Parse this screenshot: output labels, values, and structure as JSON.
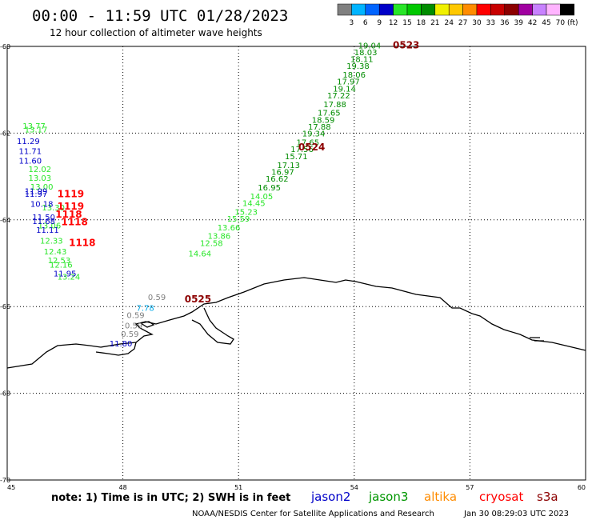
{
  "header": {
    "title": "00:00 - 11:59 UTC 01/28/2023",
    "subtitle": "12 hour collection of altimeter wave heights"
  },
  "legend": {
    "unit": "(ft)",
    "bins": [
      {
        "label": "3",
        "color": "#808080"
      },
      {
        "label": "6",
        "color": "#00b4ff"
      },
      {
        "label": "9",
        "color": "#0064ff"
      },
      {
        "label": "12",
        "color": "#0000c8"
      },
      {
        "label": "15",
        "color": "#28e628"
      },
      {
        "label": "18",
        "color": "#00c800"
      },
      {
        "label": "21",
        "color": "#008c00"
      },
      {
        "label": "24",
        "color": "#f0f000"
      },
      {
        "label": "27",
        "color": "#ffc800"
      },
      {
        "label": "30",
        "color": "#ff8c00"
      },
      {
        "label": "33",
        "color": "#ff0000"
      },
      {
        "label": "36",
        "color": "#c80000"
      },
      {
        "label": "39",
        "color": "#8c0000"
      },
      {
        "label": "42",
        "color": "#a000a0"
      },
      {
        "label": "45",
        "color": "#c882ff"
      },
      {
        "label": "70",
        "color": "#ffb4ff"
      },
      {
        "label": "",
        "color": "#000000"
      }
    ]
  },
  "axes": {
    "lon_ticks": [
      "45",
      "48",
      "51",
      "54",
      "57",
      "60"
    ],
    "lat_ticks": [
      "-60",
      "-62",
      "-64",
      "-66",
      "-68",
      "-70"
    ]
  },
  "chart_data": {
    "type": "scatter",
    "xlim": [
      45,
      60
    ],
    "ylim": [
      -70,
      -60
    ],
    "grid": true,
    "series": [
      {
        "name": "jason3",
        "color": "#008c00",
        "points": [
          {
            "lon": 54.1,
            "lat": -60.05,
            "v": "19.04"
          },
          {
            "lon": 54.0,
            "lat": -60.2,
            "v": "18.03"
          },
          {
            "lon": 53.9,
            "lat": -60.36,
            "v": "18.11"
          },
          {
            "lon": 53.8,
            "lat": -60.52,
            "v": "19.38"
          },
          {
            "lon": 53.7,
            "lat": -60.72,
            "v": "18.06"
          },
          {
            "lon": 53.55,
            "lat": -60.88,
            "v": "17.97"
          },
          {
            "lon": 53.45,
            "lat": -61.04,
            "v": "19.14"
          },
          {
            "lon": 53.3,
            "lat": -61.2,
            "v": "17.22"
          },
          {
            "lon": 53.2,
            "lat": -61.4,
            "v": "17.88"
          },
          {
            "lon": 53.05,
            "lat": -61.6,
            "v": "17.65"
          },
          {
            "lon": 52.9,
            "lat": -61.76,
            "v": "18.59"
          },
          {
            "lon": 52.8,
            "lat": -61.92,
            "v": "17.88"
          },
          {
            "lon": 52.65,
            "lat": -62.08,
            "v": "19.34"
          },
          {
            "lon": 52.5,
            "lat": -62.28,
            "v": "17.65"
          },
          {
            "lon": 52.35,
            "lat": -62.44,
            "v": "17.56"
          },
          {
            "lon": 52.2,
            "lat": -62.6,
            "v": "15.71"
          },
          {
            "lon": 52.0,
            "lat": -62.8,
            "v": "17.13"
          },
          {
            "lon": 51.85,
            "lat": -62.96,
            "v": "16.97"
          },
          {
            "lon": 51.7,
            "lat": -63.12,
            "v": "16.62"
          },
          {
            "lon": 51.5,
            "lat": -63.32,
            "v": "16.95"
          }
        ]
      },
      {
        "name": "jason3-low",
        "color": "#28e628",
        "points": [
          {
            "lon": 51.3,
            "lat": -63.52,
            "v": "14.05"
          },
          {
            "lon": 51.1,
            "lat": -63.68,
            "v": "14.45"
          },
          {
            "lon": 50.9,
            "lat": -63.88,
            "v": "15.23"
          },
          {
            "lon": 50.7,
            "lat": -64.04,
            "v": "15.59"
          },
          {
            "lon": 50.45,
            "lat": -64.24,
            "v": "13.66"
          },
          {
            "lon": 50.2,
            "lat": -64.44,
            "v": "13.86"
          },
          {
            "lon": 50.0,
            "lat": -64.6,
            "v": "12.58"
          },
          {
            "lon": 49.7,
            "lat": -64.84,
            "v": "14.64"
          },
          {
            "lon": 45.4,
            "lat": -61.9,
            "v": "13.77"
          },
          {
            "lon": 45.45,
            "lat": -61.98,
            "v": "13.17"
          },
          {
            "lon": 45.55,
            "lat": -62.9,
            "v": "12.02"
          },
          {
            "lon": 45.55,
            "lat": -63.1,
            "v": "13.03"
          },
          {
            "lon": 45.6,
            "lat": -63.3,
            "v": "13.00"
          },
          {
            "lon": 45.8,
            "lat": -64.2,
            "v": "13.06"
          },
          {
            "lon": 45.85,
            "lat": -64.55,
            "v": "12.33"
          },
          {
            "lon": 45.95,
            "lat": -64.8,
            "v": "12.43"
          },
          {
            "lon": 46.05,
            "lat": -65.0,
            "v": "12.53"
          },
          {
            "lon": 46.1,
            "lat": -65.1,
            "v": "12.16"
          },
          {
            "lon": 46.3,
            "lat": -65.38,
            "v": "13.24"
          },
          {
            "lon": 45.9,
            "lat": -63.78,
            "v": "13.30"
          }
        ]
      },
      {
        "name": "jason2",
        "color": "#0000c8",
        "points": [
          {
            "lon": 45.25,
            "lat": -62.25,
            "v": "11.29"
          },
          {
            "lon": 45.3,
            "lat": -62.48,
            "v": "11.71"
          },
          {
            "lon": 45.3,
            "lat": -62.7,
            "v": "11.60"
          },
          {
            "lon": 45.45,
            "lat": -63.4,
            "v": "11.99"
          },
          {
            "lon": 45.45,
            "lat": -63.47,
            "v": "11.97"
          },
          {
            "lon": 45.6,
            "lat": -63.7,
            "v": "10.18"
          },
          {
            "lon": 45.65,
            "lat": -64.0,
            "v": "11.50"
          },
          {
            "lon": 45.65,
            "lat": -64.1,
            "v": "11.68"
          },
          {
            "lon": 45.75,
            "lat": -64.3,
            "v": "11.11"
          },
          {
            "lon": 46.2,
            "lat": -65.3,
            "v": "11.95"
          },
          {
            "lon": 47.65,
            "lat": -66.92,
            "v": "11.80"
          }
        ]
      },
      {
        "name": "s3a",
        "color": "#ff0000",
        "points": [
          {
            "lon": 46.3,
            "lat": -63.48,
            "v": "1119"
          },
          {
            "lon": 46.3,
            "lat": -63.76,
            "v": "1119"
          },
          {
            "lon": 46.25,
            "lat": -63.95,
            "v": "1118"
          },
          {
            "lon": 46.4,
            "lat": -64.12,
            "v": "1118"
          },
          {
            "lon": 46.6,
            "lat": -64.6,
            "v": "1118"
          }
        ]
      },
      {
        "name": "gray",
        "color": "#808080",
        "points": [
          {
            "lon": 48.65,
            "lat": -65.85,
            "v": "0.59"
          },
          {
            "lon": 48.1,
            "lat": -66.26,
            "v": "0.59"
          },
          {
            "lon": 48.05,
            "lat": -66.5,
            "v": "0.59"
          },
          {
            "lon": 47.95,
            "lat": -66.7,
            "v": "0.59"
          }
        ]
      },
      {
        "name": "cyan",
        "color": "#00a8e8",
        "points": [
          {
            "lon": 48.35,
            "lat": -66.1,
            "v": "7.78"
          }
        ]
      }
    ],
    "time_labels": [
      {
        "lon": 55.0,
        "lat": -60.05,
        "v": "0523"
      },
      {
        "lon": 52.55,
        "lat": -62.4,
        "v": "0524"
      },
      {
        "lon": 49.6,
        "lat": -65.9,
        "v": "0525"
      }
    ]
  },
  "footer": {
    "note": "note:  1) Time is in UTC; 2) SWH is in feet",
    "satellites": [
      {
        "label": "jason2",
        "color": "#0000c8"
      },
      {
        "label": "jason3",
        "color": "#009600"
      },
      {
        "label": "altika",
        "color": "#ff8c00"
      },
      {
        "label": "cryosat",
        "color": "#ff0000"
      },
      {
        "label": "s3a",
        "color": "#8c0000"
      }
    ],
    "credit": "NOAA/NESDIS Center for Satellite Applications and Research",
    "timestamp": "Jan 30 08:29:03 UTC 2023"
  }
}
